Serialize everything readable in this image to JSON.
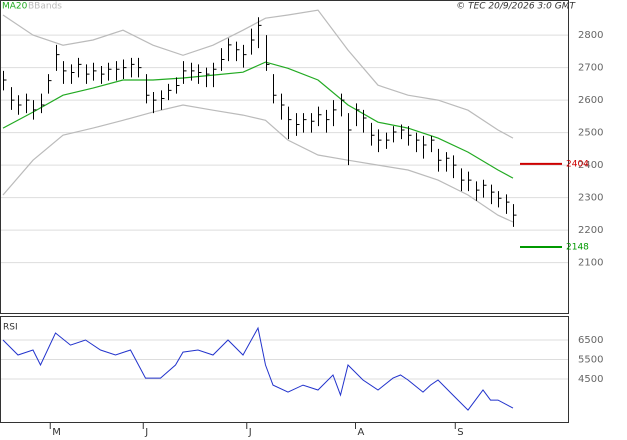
{
  "header": {
    "source": "© TEC 20/9/2026 3:0 GMT"
  },
  "chart_data": [
    {
      "type": "ohlc",
      "xlim": [
        -0.4,
        75.33
      ],
      "ylim": [
        1945,
        2908
      ],
      "yticks": [
        2100,
        2200,
        2300,
        2400,
        2500,
        2600,
        2700,
        2800
      ],
      "grid": true,
      "ohlc": {
        "color": "#000000",
        "high": [
          2690,
          2640,
          2615,
          2620,
          2600,
          2620,
          2680,
          2770,
          2720,
          2710,
          2730,
          2710,
          2715,
          2705,
          2715,
          2720,
          2725,
          2730,
          2730,
          2680,
          2625,
          2630,
          2650,
          2670,
          2720,
          2715,
          2710,
          2700,
          2715,
          2760,
          2790,
          2780,
          2770,
          2820,
          2855,
          2800,
          2680,
          2620,
          2580,
          2560,
          2560,
          2560,
          2580,
          2570,
          2600,
          2620,
          2560,
          2590,
          2570,
          2530,
          2510,
          2500,
          2520,
          2525,
          2520,
          2500,
          2490,
          2490,
          2450,
          2440,
          2430,
          2390,
          2380,
          2350,
          2355,
          2340,
          2320,
          2310,
          2280
        ],
        "low": [
          2630,
          2570,
          2555,
          2560,
          2540,
          2560,
          2620,
          2690,
          2650,
          2650,
          2670,
          2650,
          2660,
          2650,
          2660,
          2660,
          2665,
          2670,
          2670,
          2590,
          2560,
          2570,
          2600,
          2620,
          2650,
          2660,
          2650,
          2640,
          2640,
          2690,
          2720,
          2720,
          2700,
          2740,
          2760,
          2690,
          2590,
          2540,
          2480,
          2490,
          2500,
          2500,
          2520,
          2500,
          2520,
          2550,
          2400,
          2520,
          2500,
          2460,
          2440,
          2450,
          2470,
          2480,
          2460,
          2440,
          2420,
          2440,
          2380,
          2380,
          2360,
          2320,
          2320,
          2290,
          2300,
          2280,
          2270,
          2250,
          2210
        ],
        "close": [
          2662,
          2600,
          2585,
          2600,
          2570,
          2585,
          2660,
          2740,
          2690,
          2685,
          2710,
          2680,
          2690,
          2680,
          2695,
          2695,
          2700,
          2710,
          2700,
          2615,
          2600,
          2605,
          2630,
          2645,
          2690,
          2690,
          2685,
          2680,
          2695,
          2725,
          2770,
          2755,
          2740,
          2785,
          2830,
          2710,
          2615,
          2585,
          2540,
          2525,
          2540,
          2535,
          2555,
          2540,
          2570,
          2600,
          2508,
          2570,
          2545,
          2492,
          2477,
          2477,
          2502,
          2508,
          2492,
          2477,
          2462,
          2477,
          2415,
          2421,
          2400,
          2354,
          2354,
          2323,
          2338,
          2317,
          2298,
          2286,
          2246
        ]
      },
      "series": [
        {
          "name": "MA20",
          "color": "#22aa22",
          "x": [
            0,
            4,
            8,
            12,
            16,
            20,
            24,
            28,
            32,
            35,
            38,
            42,
            46,
            50,
            54,
            58,
            62,
            66,
            68
          ],
          "values": [
            2514,
            2563,
            2615,
            2637,
            2662,
            2662,
            2668,
            2677,
            2686,
            2717,
            2698,
            2662,
            2585,
            2532,
            2514,
            2483,
            2440,
            2385,
            2360
          ]
        },
        {
          "name": "BBands",
          "color": "#bbbbbb",
          "x": [
            0,
            4,
            8,
            12,
            16,
            20,
            24,
            28,
            32,
            35,
            38,
            42,
            46,
            50,
            54,
            58,
            62,
            66,
            68
          ],
          "upper": [
            2862,
            2800,
            2769,
            2785,
            2815,
            2769,
            2738,
            2769,
            2815,
            2852,
            2862,
            2877,
            2754,
            2646,
            2615,
            2600,
            2569,
            2508,
            2483
          ],
          "lower": [
            2308,
            2415,
            2492,
            2514,
            2538,
            2563,
            2585,
            2569,
            2554,
            2538,
            2477,
            2431,
            2415,
            2400,
            2385,
            2354,
            2308,
            2246,
            2225
          ]
        }
      ],
      "levels": [
        {
          "value": 2404,
          "color": "#cc0000"
        },
        {
          "value": 2148,
          "color": "#009900"
        }
      ]
    },
    {
      "type": "line",
      "title": "RSI",
      "xlim": [
        -0.4,
        75.33
      ],
      "ylim": [
        2300,
        7730
      ],
      "yticks": [
        4500,
        5500,
        6500
      ],
      "xticks": [
        {
          "value": 6.3,
          "label": "M"
        },
        {
          "value": 18.7,
          "label": "J"
        },
        {
          "value": 32.5,
          "label": "J"
        },
        {
          "value": 47,
          "label": "A"
        },
        {
          "value": 60.3,
          "label": "S"
        }
      ],
      "grid": true,
      "series": [
        {
          "color": "#2233cc",
          "x": [
            0,
            2,
            4,
            5,
            7,
            9,
            11,
            13,
            15,
            17,
            19,
            21,
            23,
            24,
            26,
            28,
            30,
            32,
            34,
            35,
            36,
            38,
            40,
            42,
            44,
            45,
            46,
            48,
            50,
            52,
            53,
            54,
            56,
            57,
            58,
            60,
            62,
            64,
            65,
            66,
            68
          ],
          "values": [
            6500,
            5730,
            5990,
            5220,
            6860,
            6240,
            6500,
            5990,
            5730,
            5990,
            4550,
            4550,
            5220,
            5880,
            5990,
            5730,
            6500,
            5730,
            7115,
            5220,
            4190,
            3830,
            4190,
            3940,
            4710,
            3680,
            5220,
            4450,
            3940,
            4550,
            4710,
            4450,
            3830,
            4190,
            4450,
            3680,
            2910,
            3940,
            3420,
            3420,
            3010
          ]
        }
      ]
    }
  ]
}
